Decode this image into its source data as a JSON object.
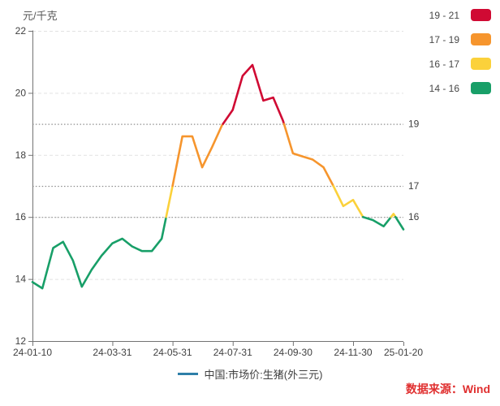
{
  "unit_label": "元/千克",
  "band_legend": {
    "items": [
      {
        "label": "19 - 21",
        "color": "#D00A33"
      },
      {
        "label": "17 - 19",
        "color": "#F6952D"
      },
      {
        "label": "16 - 17",
        "color": "#FBD13B"
      },
      {
        "label": "14 - 16",
        "color": "#189F68"
      }
    ]
  },
  "series_legend": {
    "label": "中国:市场价:生猪(外三元)",
    "line_color": "#2E7FA8"
  },
  "source": {
    "text": "数据来源：Wind",
    "color": "#E03030"
  },
  "chart_data": {
    "type": "line",
    "title": "中国:市场价:生猪(外三元)",
    "xlabel": "",
    "ylabel": "元/千克",
    "ylim": [
      12,
      22
    ],
    "y_ticks": [
      12,
      14,
      16,
      18,
      20,
      22
    ],
    "grid_values": [
      14,
      16,
      18,
      20,
      22
    ],
    "grid_on": true,
    "legend_position": "top-right",
    "reference_lines": [
      {
        "value": 19,
        "label": "19"
      },
      {
        "value": 17,
        "label": "17"
      },
      {
        "value": 16,
        "label": "16"
      }
    ],
    "x_tick_labels": [
      "24-01-10",
      "24-03-31",
      "24-05-31",
      "24-07-31",
      "24-09-30",
      "24-11-30",
      "25-01-20"
    ],
    "series": [
      {
        "name": "中国:市场价:生猪(外三元)",
        "dates": [
          "24-01-10",
          "24-01-20",
          "24-01-31",
          "24-02-10",
          "24-02-20",
          "24-02-29",
          "24-03-10",
          "24-03-20",
          "24-03-31",
          "24-04-10",
          "24-04-20",
          "24-04-30",
          "24-05-10",
          "24-05-20",
          "24-05-31",
          "24-06-10",
          "24-06-20",
          "24-06-30",
          "24-07-10",
          "24-07-20",
          "24-07-31",
          "24-08-10",
          "24-08-20",
          "24-08-31",
          "24-09-10",
          "24-09-20",
          "24-09-30",
          "24-10-10",
          "24-10-20",
          "24-10-31",
          "24-11-10",
          "24-11-20",
          "24-11-30",
          "24-12-10",
          "24-12-20",
          "24-12-31",
          "25-01-10",
          "25-01-20"
        ],
        "values": [
          13.9,
          13.7,
          15.0,
          15.2,
          14.6,
          13.75,
          14.3,
          14.75,
          15.15,
          15.3,
          15.05,
          14.9,
          14.9,
          15.3,
          17.0,
          18.6,
          18.6,
          17.6,
          18.25,
          18.95,
          19.45,
          20.55,
          20.9,
          19.75,
          19.85,
          19.1,
          18.05,
          17.95,
          17.85,
          17.6,
          17.0,
          16.35,
          16.55,
          16.0,
          15.9,
          15.7,
          16.1,
          15.6
        ]
      }
    ],
    "color_bands": [
      {
        "min": 0,
        "max": 16,
        "color": "#189F68"
      },
      {
        "min": 16,
        "max": 17,
        "color": "#FBD13B"
      },
      {
        "min": 17,
        "max": 19,
        "color": "#F6952D"
      },
      {
        "min": 19,
        "max": 99,
        "color": "#D00A33"
      }
    ],
    "style": {
      "axis_color": "#737373",
      "text_color": "#404040",
      "grid_color": "#E2E2E2",
      "ref_line_color": "#8F8F8F"
    }
  }
}
